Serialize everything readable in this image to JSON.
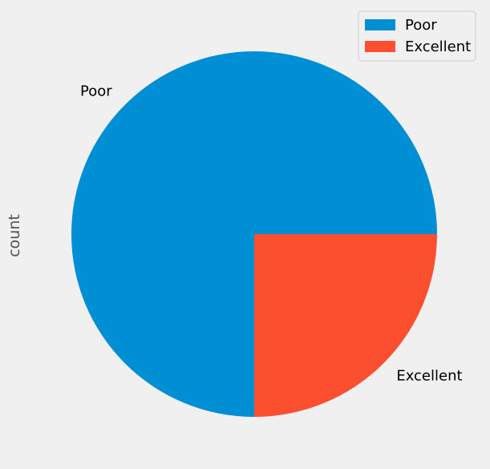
{
  "chart_data": {
    "type": "pie",
    "ylabel": "count",
    "slices": [
      {
        "label": "Poor",
        "value": 3,
        "color": "#008fd5"
      },
      {
        "label": "Excellent",
        "value": 1,
        "color": "#fc4f30"
      }
    ],
    "start_angle_deg": 0,
    "direction": "counterclockwise",
    "legend": {
      "position": "top-right",
      "entries": [
        "Poor",
        "Excellent"
      ]
    }
  }
}
